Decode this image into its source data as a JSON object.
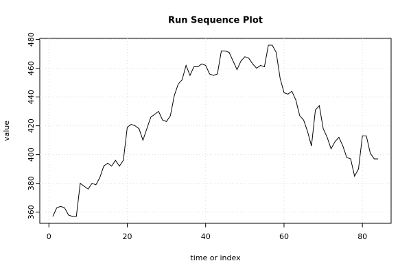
{
  "chart_data": {
    "type": "line",
    "title": "Run Sequence Plot",
    "x_label": "time or index",
    "y_label": "value",
    "x": [
      1,
      2,
      3,
      4,
      5,
      6,
      7,
      8,
      9,
      10,
      11,
      12,
      13,
      14,
      15,
      16,
      17,
      18,
      19,
      20,
      21,
      22,
      23,
      24,
      25,
      26,
      27,
      28,
      29,
      30,
      31,
      32,
      33,
      34,
      35,
      36,
      37,
      38,
      39,
      40,
      41,
      42,
      43,
      44,
      45,
      46,
      47,
      48,
      49,
      50,
      51,
      52,
      53,
      54,
      55,
      56,
      57,
      58,
      59,
      60,
      61,
      62,
      63,
      64,
      65,
      66,
      67,
      68,
      69,
      70,
      71,
      72,
      73,
      74,
      75,
      76,
      77,
      78,
      79,
      80,
      81,
      82,
      83,
      84
    ],
    "series": [
      {
        "color": "#000000",
        "values": [
          357,
          363,
          364,
          363,
          358,
          357,
          357,
          380,
          378,
          376,
          380,
          379,
          384,
          392,
          394,
          392,
          396,
          392,
          396,
          419,
          421,
          420,
          418,
          410,
          418,
          426,
          428,
          430,
          424,
          423,
          427,
          441,
          449,
          452,
          462,
          455,
          461,
          461,
          463,
          462,
          456,
          455,
          456,
          472,
          472,
          471,
          465,
          459,
          465,
          468,
          467,
          463,
          460,
          462,
          461,
          476,
          476,
          471,
          453,
          443,
          442,
          444,
          438,
          427,
          424,
          416,
          406,
          431,
          434,
          418,
          412,
          404,
          409,
          412,
          406,
          398,
          397,
          385,
          390,
          413,
          413,
          401,
          397,
          397
        ]
      }
    ],
    "xlim": [
      -2.32,
      87.32
    ],
    "ylim": [
      352.24,
      480.76
    ],
    "xticks": [
      0,
      20,
      40,
      60,
      80
    ],
    "yticks": [
      360,
      380,
      400,
      420,
      440,
      460,
      480
    ],
    "grid": true
  }
}
